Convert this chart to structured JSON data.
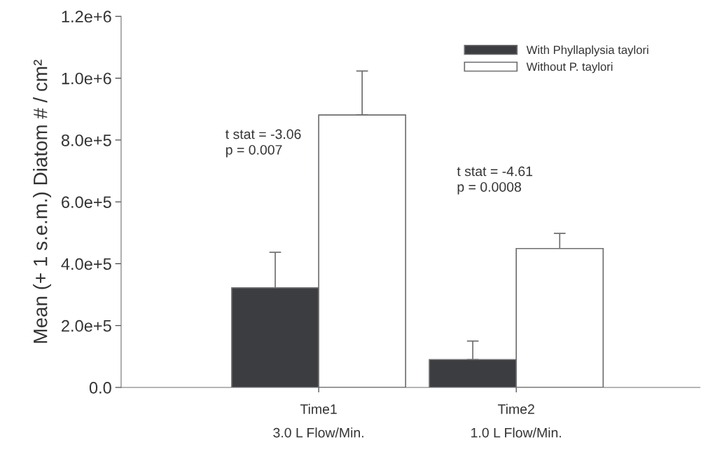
{
  "chart_data": {
    "type": "bar",
    "ylabel": "Mean (+ 1 s.e.m.) Diatom # / cm²",
    "categories": [
      "Time1\n3.0 L Flow/Min.",
      "Time2\n1.0 L Flow/Min."
    ],
    "series": [
      {
        "name": "With Phyllaplysia taylori",
        "color": "#3c3d41",
        "values": [
          322000,
          90000
        ],
        "errors": [
          115000,
          60000
        ]
      },
      {
        "name": "Without P. taylori",
        "color": "#ffffff",
        "values": [
          881000,
          449000
        ],
        "errors": [
          142000,
          49000
        ]
      }
    ],
    "ylim": [
      0,
      1200000
    ],
    "yticks": [
      {
        "value": 0,
        "label": "0.0"
      },
      {
        "value": 200000,
        "label": "2.0e+5"
      },
      {
        "value": 400000,
        "label": "4.0e+5"
      },
      {
        "value": 600000,
        "label": "6.0e+5"
      },
      {
        "value": 800000,
        "label": "8.0e+5"
      },
      {
        "value": 1000000,
        "label": "1.0e+6"
      },
      {
        "value": 1200000,
        "label": "1.2e+6"
      }
    ],
    "annotations": [
      "t stat = -3.06\np = 0.007",
      "t stat = -4.61\np = 0.0008"
    ],
    "legend": "top right",
    "grid": false
  }
}
